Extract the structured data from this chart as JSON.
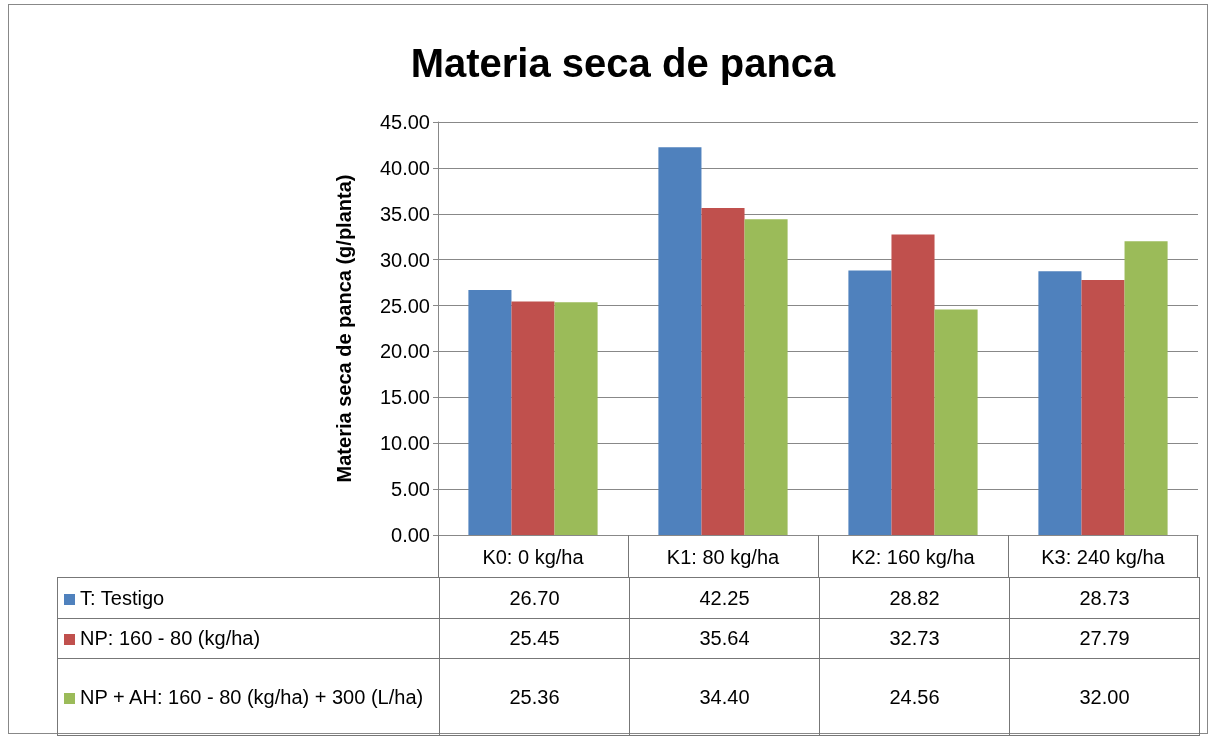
{
  "chart_data": {
    "type": "bar",
    "title": "Materia seca de panca",
    "ylabel": "Materia seca de panca (g/planta)",
    "categories": [
      "K0: 0 kg/ha",
      "K1: 80 kg/ha",
      "K2: 160 kg/ha",
      "K3: 240 kg/ha"
    ],
    "series": [
      {
        "name": "T: Testigo",
        "color": "#4f81bd",
        "values": [
          26.7,
          42.25,
          28.82,
          28.73
        ],
        "value_labels": [
          "26.70",
          "42.25",
          "28.82",
          "28.73"
        ]
      },
      {
        "name": "NP: 160 - 80 (kg/ha)",
        "color": "#c0504d",
        "values": [
          25.45,
          35.64,
          32.73,
          27.79
        ],
        "value_labels": [
          "25.45",
          "35.64",
          "32.73",
          "27.79"
        ]
      },
      {
        "name": "NP + AH: 160 - 80 (kg/ha) + 300 (L/ha)",
        "color": "#9bbb59",
        "values": [
          25.36,
          34.4,
          24.56,
          32.0
        ],
        "value_labels": [
          "25.36",
          "34.40",
          "24.56",
          "32.00"
        ]
      }
    ],
    "ylim": [
      0,
      45
    ],
    "yticks": [
      {
        "value": 0,
        "label": "0.00"
      },
      {
        "value": 5,
        "label": "5.00"
      },
      {
        "value": 10,
        "label": "10.00"
      },
      {
        "value": 15,
        "label": "15.00"
      },
      {
        "value": 20,
        "label": "20.00"
      },
      {
        "value": 25,
        "label": "25.00"
      },
      {
        "value": 30,
        "label": "30.00"
      },
      {
        "value": 35,
        "label": "35.00"
      },
      {
        "value": 40,
        "label": "40.00"
      },
      {
        "value": 45,
        "label": "45.00"
      }
    ],
    "grid": "y",
    "legend": "bottom"
  }
}
